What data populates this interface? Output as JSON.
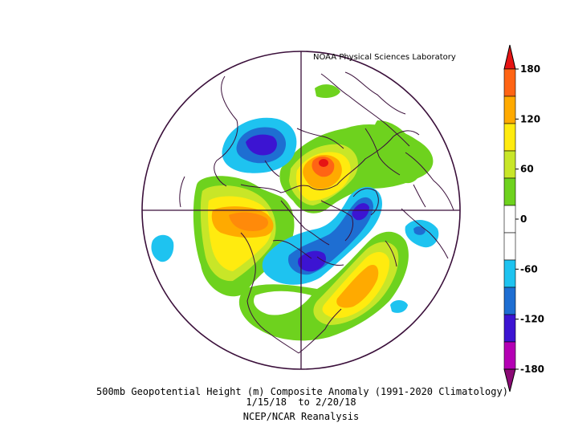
{
  "credit": "NOAA Physical Sciences Laboratory",
  "caption": {
    "line1": "500mb Geopotential Height (m) Composite Anomaly (1991-2020 Climatology)",
    "line2": "1/15/18  to 2/20/18",
    "line3": "NCEP/NCAR Reanalysis"
  },
  "colorbar": {
    "ticks": [
      "180",
      "120",
      "60",
      "0",
      "-60",
      "-120",
      "-180"
    ],
    "colors": [
      "#8b0a75",
      "#b400b4",
      "#3c14d2",
      "#1e6ed2",
      "#1ec3f0",
      "#ffffff",
      "#ffffff",
      "#6ed21e",
      "#c8e628",
      "#ffeb0f",
      "#ffaa00",
      "#ff6414",
      "#e61414"
    ]
  },
  "colors": {
    "frame": "#3a0f3a",
    "coast": "#3a0f3a"
  }
}
